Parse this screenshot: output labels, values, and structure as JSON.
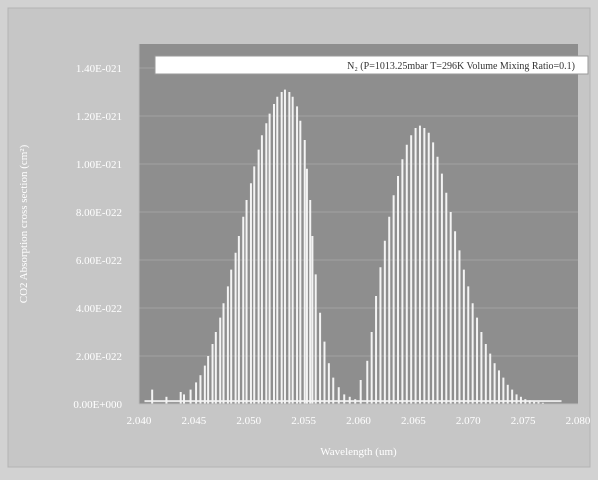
{
  "chart_data": {
    "type": "bar",
    "title": "",
    "legend": "N₂ (P=1013.25mbar T=296K Volume Mixing Ratio=0.1)",
    "legend_position": "top-right",
    "xlabel": "Wavelength (um)",
    "ylabel": "CO2 Absorption cross section (cm²)",
    "xlim": [
      2.04,
      2.08
    ],
    "ylim": [
      0,
      1.5e-21
    ],
    "x_ticks": [
      2.04,
      2.045,
      2.05,
      2.055,
      2.06,
      2.065,
      2.07,
      2.075,
      2.08
    ],
    "x_tick_labels": [
      "2.040",
      "2.045",
      "2.050",
      "2.055",
      "2.060",
      "2.065",
      "2.070",
      "2.075",
      "2.080"
    ],
    "y_ticks": [
      0,
      2e-22,
      4e-22,
      6e-22,
      8e-22,
      1e-21,
      1.2e-21,
      1.4e-21
    ],
    "y_tick_labels": [
      "0.00E+000",
      "2.00E-022",
      "4.00E-022",
      "6.00E-022",
      "8.00E-022",
      "1.00E-021",
      "1.20E-021",
      "1.40E-021"
    ],
    "grid": true,
    "colors": {
      "plot_bg": "#8e8e8e",
      "frame_bg": "#d2d2d2",
      "line": "#f4f4f4",
      "grid": "#a8a8a8"
    },
    "series": [
      {
        "x": [
          2.0412,
          2.0425,
          2.0438,
          2.0441,
          2.0447,
          2.0452,
          2.0456,
          2.046,
          2.0463,
          2.0467,
          2.047,
          2.0474,
          2.0477,
          2.0481,
          2.0484,
          2.0488,
          2.0491,
          2.0495,
          2.0498,
          2.0502,
          2.0505,
          2.0509,
          2.0512,
          2.0516,
          2.0519,
          2.0523,
          2.0526,
          2.053,
          2.0533,
          2.0537,
          2.054,
          2.0544,
          2.0547,
          2.0551,
          2.0553,
          2.0556,
          2.0558,
          2.0561,
          2.0565,
          2.0569,
          2.0573,
          2.0577,
          2.0582,
          2.0587,
          2.0592,
          2.0597,
          2.0602,
          2.0608,
          2.0612,
          2.0616,
          2.062,
          2.0624,
          2.0628,
          2.0632,
          2.0636,
          2.064,
          2.0644,
          2.0648,
          2.0652,
          2.0656,
          2.066,
          2.0664,
          2.0668,
          2.0672,
          2.0676,
          2.068,
          2.0684,
          2.0688,
          2.0692,
          2.0696,
          2.07,
          2.0704,
          2.0708,
          2.0712,
          2.0716,
          2.072,
          2.0724,
          2.0728,
          2.0732,
          2.0736,
          2.074,
          2.0744,
          2.0748,
          2.0752,
          2.0756,
          2.076,
          2.0764,
          2.0768
        ],
        "values": [
          6e-23,
          3e-23,
          5e-23,
          4e-23,
          6e-23,
          9e-23,
          1.2e-22,
          1.6e-22,
          2e-22,
          2.5e-22,
          3e-22,
          3.6e-22,
          4.2e-22,
          4.9e-22,
          5.6e-22,
          6.3e-22,
          7e-22,
          7.8e-22,
          8.5e-22,
          9.2e-22,
          9.9e-22,
          1.06e-21,
          1.12e-21,
          1.17e-21,
          1.21e-21,
          1.25e-21,
          1.28e-21,
          1.3e-21,
          1.31e-21,
          1.3e-21,
          1.28e-21,
          1.24e-21,
          1.18e-21,
          1.1e-21,
          9.8e-22,
          8.5e-22,
          7e-22,
          5.4e-22,
          3.8e-22,
          2.6e-22,
          1.7e-22,
          1.1e-22,
          7e-23,
          4e-23,
          3e-23,
          2e-23,
          1e-22,
          1.8e-22,
          3e-22,
          4.5e-22,
          5.7e-22,
          6.8e-22,
          7.8e-22,
          8.7e-22,
          9.5e-22,
          1.02e-21,
          1.08e-21,
          1.12e-21,
          1.15e-21,
          1.16e-21,
          1.15e-21,
          1.13e-21,
          1.09e-21,
          1.03e-21,
          9.6e-22,
          8.8e-22,
          8e-22,
          7.2e-22,
          6.4e-22,
          5.6e-22,
          4.9e-22,
          4.2e-22,
          3.6e-22,
          3e-22,
          2.5e-22,
          2.1e-22,
          1.7e-22,
          1.4e-22,
          1.1e-22,
          8e-23,
          6e-23,
          4e-23,
          3e-23,
          2e-23,
          1.5e-23,
          1e-23,
          8e-24,
          5e-24
        ]
      }
    ]
  }
}
